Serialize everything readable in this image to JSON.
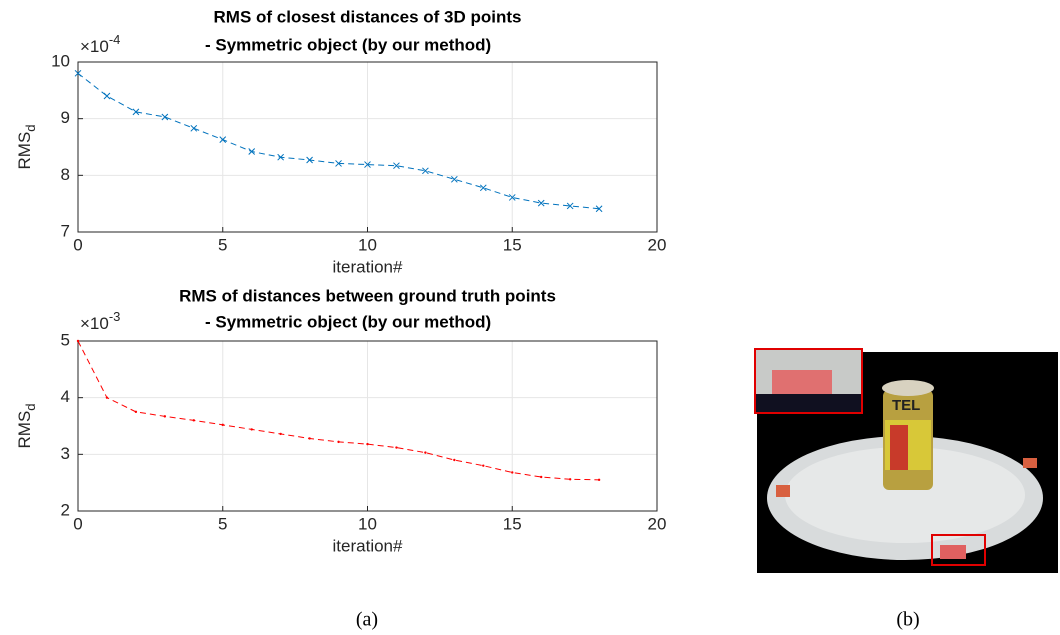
{
  "chart_data": [
    {
      "type": "line",
      "title": [
        "RMS of closest distances of 3D points",
        " - Symmetric object (by our method)"
      ],
      "y_multiplier": {
        "base": "×10",
        "exponent": "-4"
      },
      "x_label": "iteration#",
      "y_label": {
        "text": "RMS",
        "subscript": "d"
      },
      "xlim": [
        0,
        20
      ],
      "xticks": [
        0,
        5,
        10,
        15,
        20
      ],
      "ylim": [
        7,
        10
      ],
      "yticks": [
        7,
        8,
        9,
        10
      ],
      "grid": true,
      "series": [
        {
          "color": "#0072bd",
          "marker": "x",
          "line_style": "dashed",
          "x": [
            0,
            1,
            2,
            3,
            4,
            5,
            6,
            7,
            8,
            9,
            10,
            11,
            12,
            13,
            14,
            15,
            16,
            17,
            18
          ],
          "values": [
            9.8,
            9.4,
            9.12,
            9.03,
            8.83,
            8.63,
            8.42,
            8.32,
            8.27,
            8.21,
            8.19,
            8.17,
            8.08,
            7.93,
            7.78,
            7.61,
            7.51,
            7.46,
            7.41
          ]
        }
      ]
    },
    {
      "type": "line",
      "title": [
        "RMS of distances between ground truth points",
        " - Symmetric object (by our method)"
      ],
      "y_multiplier": {
        "base": "×10",
        "exponent": "-3"
      },
      "x_label": "iteration#",
      "y_label": {
        "text": "RMS",
        "subscript": "d"
      },
      "xlim": [
        0,
        20
      ],
      "xticks": [
        0,
        5,
        10,
        15,
        20
      ],
      "ylim": [
        2,
        5
      ],
      "yticks": [
        2,
        3,
        4,
        5
      ],
      "grid": true,
      "series": [
        {
          "color": "#ff0000",
          "marker": ".",
          "line_style": "dashed",
          "x": [
            0,
            1,
            2,
            3,
            4,
            5,
            6,
            7,
            8,
            9,
            10,
            11,
            12,
            13,
            14,
            15,
            16,
            17,
            18
          ],
          "values": [
            5.0,
            4.0,
            3.75,
            3.67,
            3.6,
            3.52,
            3.44,
            3.36,
            3.28,
            3.22,
            3.18,
            3.12,
            3.03,
            2.9,
            2.8,
            2.68,
            2.6,
            2.56,
            2.55
          ]
        }
      ]
    }
  ],
  "captions": [
    "(a)",
    "(b)"
  ]
}
